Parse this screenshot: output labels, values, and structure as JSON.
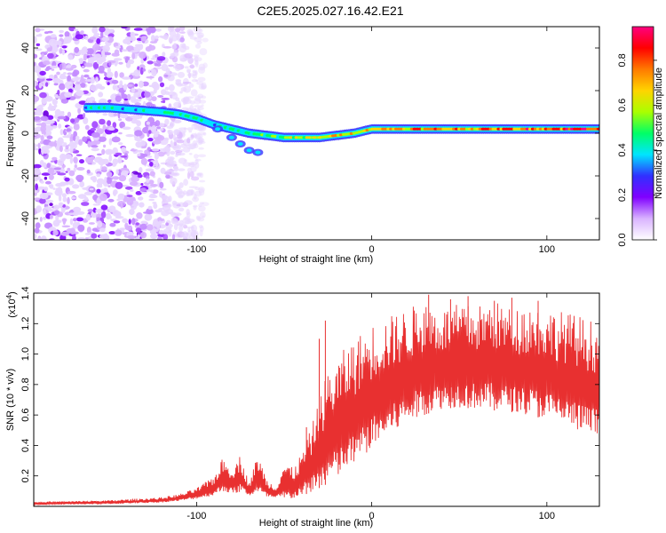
{
  "page_title": "C2E5.2025.027.16.42.E21",
  "chart_data": [
    {
      "type": "heatmap",
      "title": "C2E5.2025.027.16.42.E21",
      "xlabel": "Height of straight line (km)",
      "ylabel": "Frequency (Hz)",
      "xlim": [
        -193,
        130
      ],
      "ylim": [
        -50,
        50
      ],
      "x_ticks": [
        -100,
        0,
        100
      ],
      "x_tick_labels": [
        "-100",
        "0",
        "100"
      ],
      "y_ticks": [
        -40,
        -20,
        0,
        20,
        40
      ],
      "y_tick_labels": [
        "-40",
        "-20",
        "0",
        "20",
        "40"
      ],
      "colorbar": {
        "label": "Normalized spectral amplitude",
        "range": [
          0,
          0.95
        ],
        "ticks": [
          0.0,
          0.2,
          0.4,
          0.6,
          0.8
        ],
        "tick_labels": [
          "0.0",
          "0.2",
          "0.4",
          "0.6",
          "0.8"
        ],
        "colors": [
          "#ffffff",
          "#d9b3ff",
          "#8000ff",
          "#3030ff",
          "#00e5ff",
          "#00ff66",
          "#aaff00",
          "#ffd400",
          "#ff7a00",
          "#ff0000",
          "#ff0080"
        ]
      },
      "ridge": {
        "x": [
          -163,
          -150,
          -135,
          -120,
          -110,
          -100,
          -90,
          -80,
          -70,
          -60,
          -50,
          -40,
          -30,
          -20,
          -10,
          0,
          20,
          40,
          60,
          80,
          100,
          130
        ],
        "frequency": [
          12,
          12,
          11,
          10,
          9,
          7,
          4,
          2,
          0,
          -1,
          -2,
          -2,
          -2,
          -1,
          0,
          2,
          2,
          2,
          2,
          2,
          2,
          2
        ],
        "amplitude": [
          0.4,
          0.45,
          0.4,
          0.45,
          0.5,
          0.45,
          0.4,
          0.45,
          0.5,
          0.55,
          0.55,
          0.6,
          0.65,
          0.7,
          0.7,
          0.75,
          0.8,
          0.8,
          0.8,
          0.85,
          0.9,
          0.95
        ]
      },
      "noise_region_x": [
        -193,
        -105
      ]
    },
    {
      "type": "line",
      "title": "",
      "xlabel": "Height of straight line (km)",
      "ylabel": "SNR (10 * v/v)",
      "y_scale_label": "(x10",
      "y_scale_exp": "4",
      "xlim": [
        -193,
        130
      ],
      "ylim": [
        0,
        14000
      ],
      "x_ticks": [
        -100,
        0,
        100
      ],
      "x_tick_labels": [
        "-100",
        "0",
        "100"
      ],
      "y_ticks": [
        2000,
        4000,
        6000,
        8000,
        10000,
        12000,
        14000
      ],
      "y_tick_labels": [
        "0.2",
        "0.4",
        "0.6",
        "0.8",
        "1.0",
        "1.2",
        "1.4"
      ],
      "color": "#e83030",
      "envelope": {
        "x": [
          -193,
          -150,
          -120,
          -110,
          -100,
          -90,
          -85,
          -80,
          -75,
          -70,
          -65,
          -60,
          -55,
          -50,
          -45,
          -40,
          -35,
          -30,
          -25,
          -20,
          -15,
          -10,
          -5,
          0,
          10,
          20,
          30,
          40,
          50,
          60,
          70,
          80,
          90,
          100,
          110,
          120,
          130
        ],
        "low": [
          100,
          150,
          250,
          350,
          500,
          700,
          1000,
          800,
          900,
          700,
          800,
          600,
          500,
          400,
          500,
          700,
          900,
          1200,
          1500,
          1800,
          2200,
          2700,
          3200,
          3800,
          4600,
          5400,
          6000,
          6400,
          6500,
          6400,
          6300,
          6200,
          6000,
          5700,
          5300,
          4800,
          4500
        ],
        "high": [
          300,
          400,
          600,
          800,
          1200,
          2000,
          3200,
          2500,
          3400,
          1500,
          3500,
          1800,
          1300,
          3000,
          2500,
          3500,
          5000,
          7000,
          9000,
          9500,
          10500,
          11000,
          11500,
          12000,
          12500,
          13000,
          13500,
          13000,
          13300,
          13200,
          13500,
          13000,
          13300,
          13000,
          12800,
          12500,
          12000
        ]
      },
      "spikes": [
        {
          "x": -37.3,
          "y": 5200
        },
        {
          "x": -30,
          "y": 11000
        },
        {
          "x": -26.5,
          "y": 12200
        },
        {
          "x": 32.5,
          "y": 13900
        },
        {
          "x": 45,
          "y": 13600
        },
        {
          "x": 55,
          "y": 13800
        },
        {
          "x": 70,
          "y": 13500
        },
        {
          "x": 80,
          "y": 13700
        },
        {
          "x": 95,
          "y": 13500
        }
      ]
    }
  ]
}
